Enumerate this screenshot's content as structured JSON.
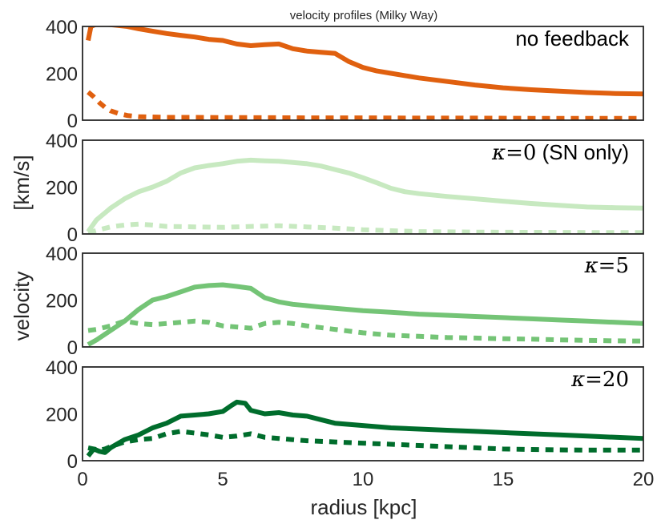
{
  "chart_data": {
    "type": "line",
    "title": "velocity profiles (Milky Way)",
    "xlabel": "radius [kpc]",
    "ylabel_parts": [
      "velocity",
      "[km/s]"
    ],
    "xlim": [
      0,
      20
    ],
    "ylim": [
      0,
      400
    ],
    "xticks": [
      "0",
      "5",
      "10",
      "15",
      "20"
    ],
    "yticks": [
      "0",
      "200",
      "400"
    ],
    "panels": [
      {
        "label": "no feedback",
        "label_math": "",
        "label_suffix": "",
        "color": "#e0600f",
        "series": [
          {
            "style": "solid",
            "x": [
              0.2,
              0.3,
              0.5,
              0.8,
              1.2,
              1.6,
              2.0,
              2.5,
              3.0,
              3.5,
              4.0,
              4.5,
              5.0,
              5.5,
              6.0,
              6.5,
              7.0,
              7.5,
              8.0,
              8.5,
              9.0,
              9.5,
              10.0,
              10.5,
              11.0,
              11.5,
              12.0,
              13.0,
              14.0,
              15.0,
              16.0,
              17.0,
              18.0,
              19.0,
              20.0
            ],
            "y": [
              340,
              400,
              410,
              410,
              405,
              400,
              390,
              380,
              370,
              362,
              355,
              345,
              340,
              325,
              318,
              322,
              325,
              305,
              295,
              290,
              285,
              250,
              225,
              210,
              200,
              190,
              180,
              165,
              150,
              138,
              130,
              124,
              118,
              114,
              112
            ]
          },
          {
            "style": "dashed",
            "x": [
              0.2,
              0.4,
              0.6,
              0.8,
              1.0,
              1.3,
              1.6,
              2.0,
              3.0,
              4.0,
              5.0,
              6.0,
              8.0,
              10.0,
              12.0,
              14.0,
              16.0,
              18.0,
              20.0
            ],
            "y": [
              120,
              100,
              75,
              55,
              40,
              28,
              20,
              15,
              12,
              12,
              11,
              11,
              10,
              10,
              9,
              9,
              8,
              8,
              8
            ]
          }
        ]
      },
      {
        "label": " (SN only)",
        "label_math": "κ",
        "label_suffix": "=0",
        "color": "#c7e9c0",
        "series": [
          {
            "style": "solid",
            "x": [
              0.2,
              0.5,
              1.0,
              1.5,
              2.0,
              2.5,
              3.0,
              3.5,
              4.0,
              4.5,
              5.0,
              5.5,
              6.0,
              6.5,
              7.0,
              7.5,
              8.0,
              8.5,
              9.0,
              9.5,
              10.0,
              10.5,
              11.0,
              11.5,
              12.0,
              13.0,
              14.0,
              15.0,
              16.0,
              17.0,
              18.0,
              19.0,
              20.0
            ],
            "y": [
              10,
              60,
              110,
              150,
              180,
              200,
              225,
              260,
              282,
              292,
              300,
              310,
              315,
              312,
              310,
              305,
              300,
              290,
              275,
              260,
              240,
              218,
              195,
              180,
              172,
              160,
              150,
              140,
              130,
              122,
              115,
              112,
              110
            ]
          },
          {
            "style": "dashed",
            "x": [
              0.2,
              0.5,
              1.0,
              1.5,
              2.0,
              2.5,
              3.0,
              4.0,
              5.0,
              6.0,
              7.0,
              8.0,
              9.0,
              10.0,
              12.0,
              14.0,
              16.0,
              18.0,
              20.0
            ],
            "y": [
              5,
              15,
              30,
              38,
              42,
              38,
              32,
              30,
              28,
              32,
              35,
              30,
              25,
              18,
              10,
              8,
              7,
              6,
              6
            ]
          }
        ]
      },
      {
        "label": "",
        "label_math": "κ",
        "label_suffix": "=5",
        "color": "#74c476",
        "series": [
          {
            "style": "solid",
            "x": [
              0.2,
              0.5,
              1.0,
              1.5,
              2.0,
              2.5,
              3.0,
              3.5,
              4.0,
              4.5,
              5.0,
              5.5,
              6.0,
              6.5,
              7.0,
              7.5,
              8.0,
              8.5,
              9.0,
              9.5,
              10.0,
              11.0,
              12.0,
              13.0,
              14.0,
              15.0,
              16.0,
              17.0,
              18.0,
              19.0,
              20.0
            ],
            "y": [
              10,
              30,
              70,
              110,
              160,
              200,
              215,
              235,
              255,
              262,
              265,
              258,
              250,
              210,
              192,
              182,
              176,
              170,
              165,
              160,
              155,
              148,
              140,
              135,
              130,
              125,
              120,
              115,
              110,
              105,
              100
            ]
          },
          {
            "style": "dashed",
            "x": [
              0.2,
              0.5,
              1.0,
              1.5,
              2.0,
              2.5,
              3.0,
              3.5,
              4.0,
              4.5,
              5.0,
              5.5,
              6.0,
              6.5,
              7.0,
              7.5,
              8.0,
              9.0,
              10.0,
              11.0,
              12.0,
              13.0,
              14.0,
              15.0,
              16.0,
              17.0,
              18.0,
              19.0,
              20.0
            ],
            "y": [
              70,
              75,
              90,
              110,
              100,
              95,
              100,
              105,
              110,
              105,
              90,
              85,
              80,
              100,
              105,
              100,
              90,
              75,
              60,
              50,
              45,
              40,
              38,
              35,
              33,
              30,
              28,
              26,
              25
            ]
          }
        ]
      },
      {
        "label": "",
        "label_math": "κ",
        "label_suffix": "=20",
        "color": "#006d2c",
        "series": [
          {
            "style": "solid",
            "x": [
              0.2,
              0.4,
              0.6,
              0.8,
              1.0,
              1.5,
              2.0,
              2.5,
              3.0,
              3.5,
              4.0,
              4.5,
              5.0,
              5.3,
              5.5,
              5.8,
              6.0,
              6.5,
              7.0,
              7.5,
              8.0,
              8.5,
              9.0,
              10.0,
              11.0,
              12.0,
              13.0,
              14.0,
              15.0,
              16.0,
              17.0,
              18.0,
              19.0,
              20.0
            ],
            "y": [
              20,
              50,
              40,
              35,
              55,
              90,
              110,
              140,
              160,
              190,
              195,
              200,
              210,
              235,
              250,
              245,
              215,
              200,
              205,
              195,
              190,
              175,
              160,
              150,
              140,
              135,
              130,
              125,
              120,
              115,
              110,
              105,
              100,
              95
            ]
          },
          {
            "style": "dashed",
            "x": [
              0.2,
              0.4,
              0.6,
              0.8,
              1.0,
              1.5,
              2.0,
              2.5,
              3.0,
              3.5,
              4.0,
              4.5,
              5.0,
              5.5,
              6.0,
              6.5,
              7.0,
              7.5,
              8.0,
              9.0,
              10.0,
              11.0,
              12.0,
              13.0,
              14.0,
              15.0,
              16.0,
              17.0,
              18.0,
              19.0,
              20.0
            ],
            "y": [
              55,
              50,
              45,
              50,
              60,
              80,
              90,
              95,
              115,
              125,
              118,
              110,
              100,
              105,
              115,
              100,
              95,
              90,
              85,
              80,
              75,
              70,
              65,
              60,
              55,
              50,
              48,
              46,
              45,
              45,
              45
            ]
          }
        ]
      }
    ]
  }
}
